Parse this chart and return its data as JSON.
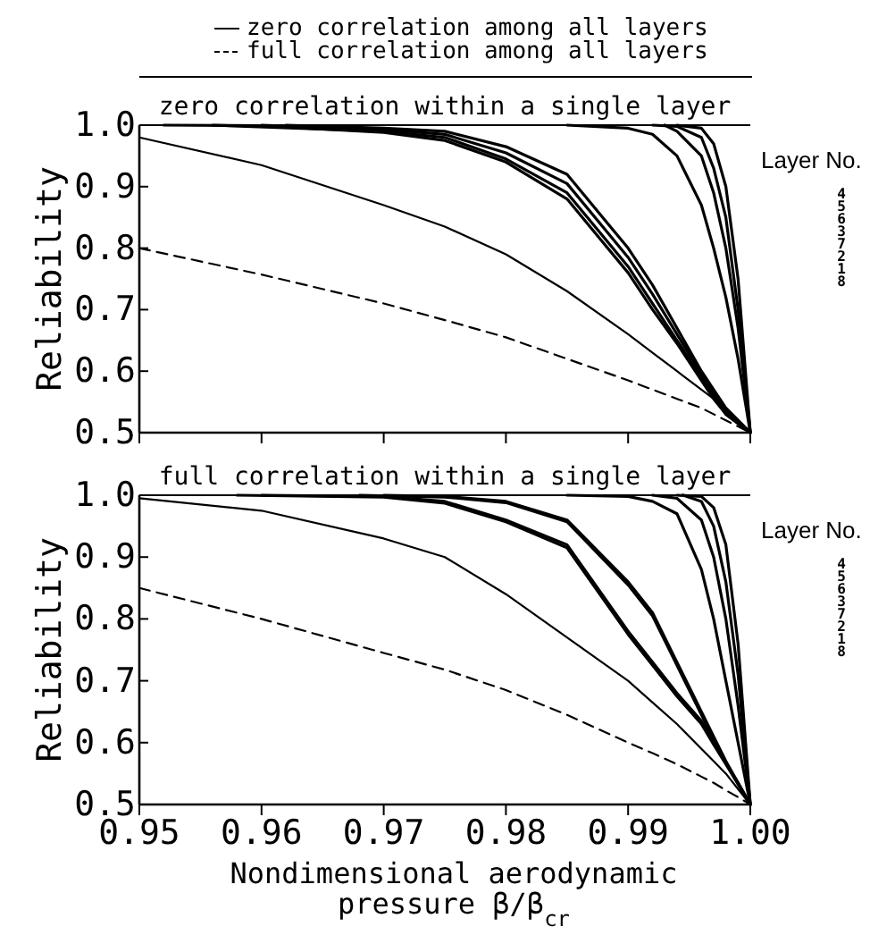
{
  "chart_data": [
    {
      "type": "line",
      "title": "zero correlation within a single layer",
      "ylabel": "Reliability",
      "x": [
        0.95,
        0.96,
        0.97,
        0.975,
        0.98,
        0.985,
        0.99,
        0.992,
        0.994,
        0.996,
        0.997,
        0.998,
        0.999,
        1.0
      ],
      "xlim": [
        0.95,
        1.0
      ],
      "xticks": [
        {
          "value": 0.95,
          "label": null
        },
        {
          "value": 0.96,
          "label": null
        },
        {
          "value": 0.97,
          "label": null
        },
        {
          "value": 0.98,
          "label": null
        },
        {
          "value": 0.99,
          "label": null
        },
        {
          "value": 1.0,
          "label": null
        }
      ],
      "ylim": [
        0.5,
        1.0
      ],
      "yticks": [
        {
          "value": 0.5,
          "label": "0.5"
        },
        {
          "value": 0.6,
          "label": "0.6"
        },
        {
          "value": 0.7,
          "label": "0.7"
        },
        {
          "value": 0.8,
          "label": "0.8"
        },
        {
          "value": 0.9,
          "label": "0.9"
        },
        {
          "value": 1.0,
          "label": "1.0"
        }
      ],
      "tick_labels": "y",
      "legend": "top",
      "grid": false,
      "marker": "none",
      "annotations": [
        "Layer No.",
        "4",
        "5",
        "6",
        "3",
        "7",
        "2",
        "1",
        "8"
      ],
      "series": [
        {
          "name": "zero correlation among all layers",
          "color": "#000000",
          "line_style": "solid",
          "values": [
            0.98,
            0.935,
            0.87,
            0.835,
            0.79,
            0.73,
            0.66,
            0.63,
            0.6,
            0.57,
            0.555,
            0.54,
            0.52,
            0.5
          ]
        },
        {
          "name": "full correlation among all layers",
          "color": "#000000",
          "line_style": "dashed",
          "values": [
            0.8,
            0.757,
            0.71,
            0.683,
            0.655,
            0.62,
            0.585,
            0.57,
            0.555,
            0.54,
            0.53,
            0.52,
            0.51,
            0.5
          ]
        },
        {
          "color": "#000000",
          "line_style": "solid",
          "x": [
            0.994,
            0.996,
            0.997,
            0.998,
            0.999,
            1.0
          ],
          "values": [
            1.0,
            0.995,
            0.97,
            0.9,
            0.75,
            0.5
          ]
        },
        {
          "color": "#000000",
          "line_style": "solid",
          "x": [
            0.992,
            0.994,
            0.996,
            0.997,
            0.998,
            0.999,
            1.0
          ],
          "values": [
            1.0,
            0.998,
            0.98,
            0.93,
            0.85,
            0.7,
            0.5
          ]
        },
        {
          "color": "#000000",
          "line_style": "solid",
          "x": [
            0.993,
            0.994,
            0.996,
            0.997,
            0.998,
            0.999,
            1.0
          ],
          "values": [
            1.0,
            0.99,
            0.95,
            0.89,
            0.8,
            0.67,
            0.5
          ]
        },
        {
          "color": "#000000",
          "line_style": "solid",
          "x": [
            0.985,
            0.99,
            0.992,
            0.994,
            0.996,
            0.997,
            0.998,
            0.999,
            1.0
          ],
          "values": [
            1.0,
            0.995,
            0.985,
            0.95,
            0.87,
            0.8,
            0.72,
            0.62,
            0.5
          ]
        },
        {
          "color": "#000000",
          "line_style": "solid",
          "x": [
            0.962,
            0.97,
            0.975,
            0.98,
            0.985,
            0.99,
            0.992,
            0.994,
            0.996,
            0.997,
            0.998,
            0.999,
            1.0
          ],
          "values": [
            1.0,
            0.995,
            0.99,
            0.965,
            0.92,
            0.8,
            0.74,
            0.67,
            0.6,
            0.57,
            0.54,
            0.52,
            0.5
          ]
        },
        {
          "color": "#000000",
          "line_style": "solid",
          "x": [
            0.96,
            0.97,
            0.975,
            0.98,
            0.985,
            0.99,
            0.992,
            0.994,
            0.996,
            0.997,
            0.998,
            0.999,
            1.0
          ],
          "values": [
            1.0,
            0.993,
            0.985,
            0.955,
            0.905,
            0.785,
            0.725,
            0.66,
            0.595,
            0.565,
            0.535,
            0.515,
            0.5
          ]
        },
        {
          "color": "#000000",
          "line_style": "solid",
          "x": [
            0.956,
            0.97,
            0.975,
            0.98,
            0.985,
            0.99,
            0.992,
            0.994,
            0.996,
            0.997,
            0.998,
            0.999,
            1.0
          ],
          "values": [
            1.0,
            0.99,
            0.98,
            0.945,
            0.89,
            0.77,
            0.71,
            0.65,
            0.59,
            0.56,
            0.53,
            0.515,
            0.5
          ]
        },
        {
          "color": "#000000",
          "line_style": "solid",
          "x": [
            0.952,
            0.96,
            0.97,
            0.975,
            0.98,
            0.985,
            0.99,
            0.992,
            0.994,
            0.996,
            0.997,
            0.998,
            0.999,
            1.0
          ],
          "values": [
            1.0,
            0.999,
            0.988,
            0.975,
            0.94,
            0.88,
            0.76,
            0.7,
            0.645,
            0.585,
            0.555,
            0.53,
            0.515,
            0.5
          ]
        }
      ]
    },
    {
      "type": "line",
      "title": "full correlation within a single layer",
      "xlabel": "Nondimensional aerodynamic pressure β/β$_{cr}$",
      "ylabel": "Reliability",
      "x": [
        0.95,
        0.96,
        0.97,
        0.975,
        0.98,
        0.985,
        0.99,
        0.992,
        0.994,
        0.996,
        0.997,
        0.998,
        0.999,
        1.0
      ],
      "xlim": [
        0.95,
        1.0
      ],
      "xticks": [
        {
          "value": 0.95,
          "label": "0.95"
        },
        {
          "value": 0.96,
          "label": "0.96"
        },
        {
          "value": 0.97,
          "label": "0.97"
        },
        {
          "value": 0.98,
          "label": "0.98"
        },
        {
          "value": 0.99,
          "label": "0.99"
        },
        {
          "value": 1.0,
          "label": "1.00"
        }
      ],
      "ylim": [
        0.5,
        1.0
      ],
      "yticks": [
        {
          "value": 0.5,
          "label": "0.5"
        },
        {
          "value": 0.6,
          "label": "0.6"
        },
        {
          "value": 0.7,
          "label": "0.7"
        },
        {
          "value": 0.8,
          "label": "0.8"
        },
        {
          "value": 0.9,
          "label": "0.9"
        },
        {
          "value": 1.0,
          "label": "1.0"
        }
      ],
      "grid": false,
      "marker": "none",
      "annotations": [
        "Layer No.",
        "4",
        "5",
        "6",
        "3",
        "7",
        "2",
        "1",
        "8"
      ],
      "series": [
        {
          "color": "#000000",
          "line_style": "solid",
          "values": [
            0.995,
            0.975,
            0.93,
            0.9,
            0.84,
            0.77,
            0.7,
            0.665,
            0.63,
            0.59,
            0.57,
            0.55,
            0.525,
            0.5
          ]
        },
        {
          "color": "#000000",
          "line_style": "dashed",
          "values": [
            0.85,
            0.8,
            0.745,
            0.718,
            0.685,
            0.645,
            0.6,
            0.583,
            0.565,
            0.545,
            0.535,
            0.523,
            0.512,
            0.5
          ]
        },
        {
          "color": "#000000",
          "line_style": "solid",
          "x": [
            0.994,
            0.996,
            0.997,
            0.998,
            0.999,
            1.0
          ],
          "values": [
            1.0,
            0.998,
            0.98,
            0.92,
            0.76,
            0.5
          ]
        },
        {
          "color": "#000000",
          "line_style": "solid",
          "x": [
            0.9945,
            0.996,
            0.997,
            0.998,
            0.999,
            1.0
          ],
          "values": [
            1.0,
            0.99,
            0.95,
            0.86,
            0.71,
            0.5
          ]
        },
        {
          "color": "#000000",
          "line_style": "solid",
          "x": [
            0.992,
            0.994,
            0.996,
            0.997,
            0.998,
            0.999,
            1.0
          ],
          "values": [
            1.0,
            0.995,
            0.96,
            0.9,
            0.8,
            0.66,
            0.5
          ]
        },
        {
          "color": "#000000",
          "line_style": "solid",
          "x": [
            0.985,
            0.99,
            0.992,
            0.994,
            0.996,
            0.997,
            0.998,
            0.999,
            1.0
          ],
          "values": [
            1.0,
            0.998,
            0.99,
            0.97,
            0.88,
            0.8,
            0.7,
            0.6,
            0.5
          ]
        },
        {
          "color": "#000000",
          "line_style": "solid",
          "x": [
            0.97,
            0.975,
            0.98,
            0.985,
            0.99,
            0.992,
            0.994,
            0.996,
            0.997,
            0.998,
            0.999,
            1.0
          ],
          "values": [
            1.0,
            0.998,
            0.99,
            0.96,
            0.86,
            0.81,
            0.73,
            0.65,
            0.61,
            0.57,
            0.535,
            0.5
          ]
        },
        {
          "color": "#000000",
          "line_style": "solid",
          "x": [
            0.968,
            0.975,
            0.98,
            0.985,
            0.99,
            0.992,
            0.994,
            0.996,
            0.997,
            0.998,
            0.999,
            1.0
          ],
          "values": [
            1.0,
            0.997,
            0.988,
            0.957,
            0.855,
            0.805,
            0.725,
            0.645,
            0.605,
            0.567,
            0.533,
            0.5
          ]
        },
        {
          "color": "#000000",
          "line_style": "solid",
          "x": [
            0.96,
            0.97,
            0.975,
            0.98,
            0.985,
            0.99,
            0.992,
            0.994,
            0.996,
            0.997,
            0.998,
            0.999,
            1.0
          ],
          "values": [
            1.0,
            0.998,
            0.99,
            0.96,
            0.92,
            0.78,
            0.73,
            0.68,
            0.635,
            0.6,
            0.567,
            0.535,
            0.5
          ]
        },
        {
          "color": "#000000",
          "line_style": "solid",
          "x": [
            0.958,
            0.97,
            0.975,
            0.98,
            0.985,
            0.99,
            0.992,
            0.994,
            0.996,
            0.997,
            0.998,
            0.999,
            1.0
          ],
          "values": [
            1.0,
            0.997,
            0.987,
            0.957,
            0.915,
            0.775,
            0.725,
            0.675,
            0.63,
            0.597,
            0.565,
            0.533,
            0.5
          ]
        }
      ]
    }
  ]
}
